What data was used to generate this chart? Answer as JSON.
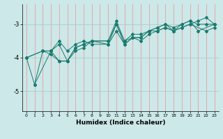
{
  "xlabel": "Humidex (Indice chaleur)",
  "background_color": "#cce8e8",
  "grid_color_v": "#e8a0a0",
  "grid_color_h": "#a8d0d0",
  "line_color": "#1a7a6e",
  "xlim": [
    -0.5,
    23.5
  ],
  "ylim": [
    -5.6,
    -2.4
  ],
  "yticks": [
    -5,
    -4,
    -3
  ],
  "xticks": [
    0,
    1,
    2,
    3,
    4,
    5,
    6,
    7,
    8,
    9,
    10,
    11,
    12,
    13,
    14,
    15,
    16,
    17,
    18,
    19,
    20,
    21,
    22,
    23
  ],
  "series": [
    [
      null,
      -4.8,
      null,
      -3.8,
      -3.6,
      -4.1,
      -3.8,
      -3.7,
      -3.5,
      null,
      -3.5,
      -3.0,
      -3.5,
      -3.3,
      -3.3,
      -3.2,
      -3.1,
      -3.0,
      -3.1,
      -3.0,
      -2.9,
      -3.0,
      -3.0,
      -3.0
    ],
    [
      -4.0,
      null,
      -3.8,
      -3.8,
      -3.5,
      -3.8,
      -3.6,
      -3.5,
      -3.6,
      null,
      -3.6,
      -3.2,
      -3.6,
      -3.4,
      -3.5,
      -3.3,
      -3.2,
      -3.1,
      -3.2,
      -3.1,
      -3.0,
      null,
      -3.2,
      -3.1
    ],
    [
      -4.0,
      null,
      -3.8,
      -3.9,
      -4.1,
      -4.1,
      -3.7,
      -3.6,
      -3.5,
      null,
      -3.5,
      -2.9,
      -3.5,
      -3.4,
      -3.4,
      -3.2,
      -3.1,
      -3.0,
      -3.2,
      -3.0,
      -2.9,
      -3.2,
      null,
      -3.0
    ],
    [
      -4.0,
      -4.8,
      -3.8,
      -3.8,
      -4.1,
      -4.1,
      -3.7,
      -3.6,
      -3.5,
      null,
      -3.6,
      -3.0,
      -3.6,
      -3.4,
      -3.4,
      -3.2,
      -3.2,
      -3.1,
      -3.2,
      -3.1,
      -3.0,
      -2.9,
      -2.8,
      -3.0
    ]
  ]
}
